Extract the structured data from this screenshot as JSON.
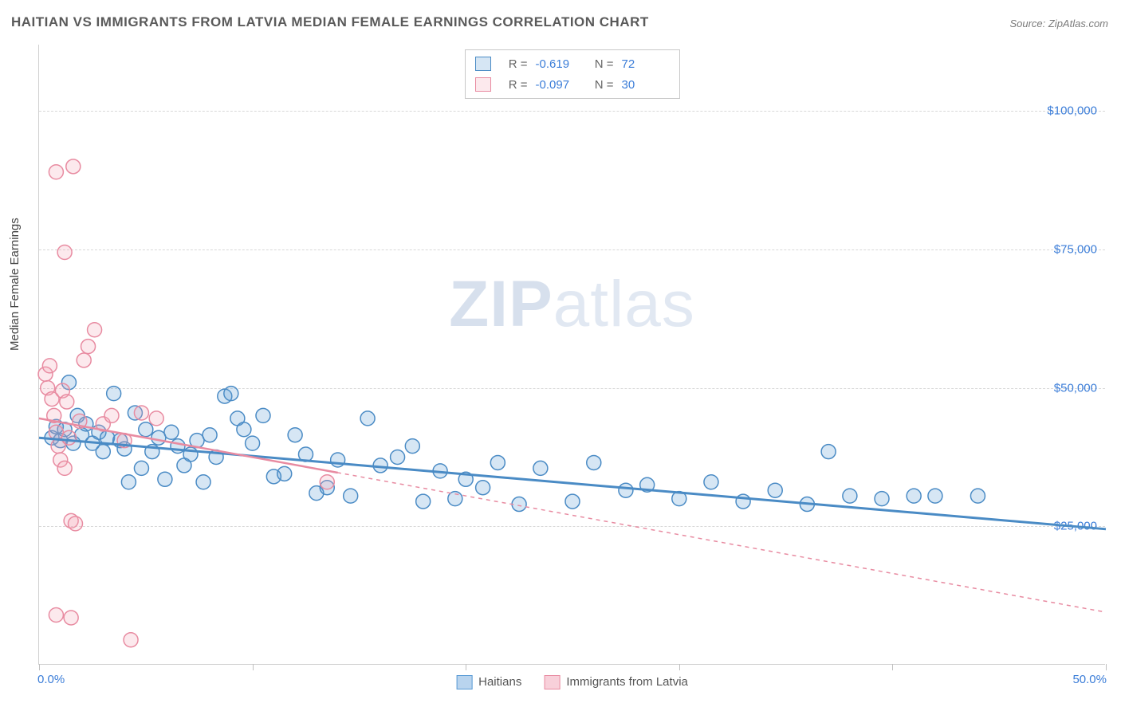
{
  "title": "HAITIAN VS IMMIGRANTS FROM LATVIA MEDIAN FEMALE EARNINGS CORRELATION CHART",
  "source": "Source: ZipAtlas.com",
  "ylabel": "Median Female Earnings",
  "watermark_a": "ZIP",
  "watermark_b": "atlas",
  "chart": {
    "type": "scatter",
    "xlim": [
      0,
      50
    ],
    "ylim": [
      0,
      112000
    ],
    "yticks": [
      25000,
      50000,
      75000,
      100000
    ],
    "ytick_labels": [
      "$25,000",
      "$50,000",
      "$75,000",
      "$100,000"
    ],
    "xticks": [
      0,
      10,
      20,
      30,
      40,
      50
    ],
    "x_start_label": "0.0%",
    "x_end_label": "50.0%",
    "background_color": "#ffffff",
    "grid_color": "#d8d8d8",
    "marker_radius": 9,
    "marker_fill_opacity": 0.25,
    "series": [
      {
        "name": "Haitians",
        "color": "#5a9bd5",
        "stroke": "#4a8bc5",
        "R": "-0.619",
        "N": "72",
        "regression": {
          "x1": 0,
          "y1": 41000,
          "x2": 50,
          "y2": 24500,
          "dash": "none",
          "width": 3
        },
        "points": [
          [
            0.6,
            41000
          ],
          [
            0.8,
            43000
          ],
          [
            1.0,
            40500
          ],
          [
            1.2,
            42500
          ],
          [
            1.4,
            51000
          ],
          [
            1.6,
            40000
          ],
          [
            1.8,
            45000
          ],
          [
            2.0,
            41500
          ],
          [
            2.2,
            43500
          ],
          [
            2.5,
            40000
          ],
          [
            2.8,
            42000
          ],
          [
            3.0,
            38500
          ],
          [
            3.2,
            41000
          ],
          [
            3.5,
            49000
          ],
          [
            3.8,
            40500
          ],
          [
            4.0,
            39000
          ],
          [
            4.2,
            33000
          ],
          [
            4.5,
            45500
          ],
          [
            4.8,
            35500
          ],
          [
            5.0,
            42500
          ],
          [
            5.3,
            38500
          ],
          [
            5.6,
            41000
          ],
          [
            5.9,
            33500
          ],
          [
            6.2,
            42000
          ],
          [
            6.5,
            39500
          ],
          [
            6.8,
            36000
          ],
          [
            7.1,
            38000
          ],
          [
            7.4,
            40500
          ],
          [
            7.7,
            33000
          ],
          [
            8.0,
            41500
          ],
          [
            8.3,
            37500
          ],
          [
            8.7,
            48500
          ],
          [
            9.0,
            49000
          ],
          [
            9.3,
            44500
          ],
          [
            9.6,
            42500
          ],
          [
            10.0,
            40000
          ],
          [
            10.5,
            45000
          ],
          [
            11.0,
            34000
          ],
          [
            11.5,
            34500
          ],
          [
            12.0,
            41500
          ],
          [
            12.5,
            38000
          ],
          [
            13.0,
            31000
          ],
          [
            13.5,
            32000
          ],
          [
            14.0,
            37000
          ],
          [
            14.6,
            30500
          ],
          [
            15.4,
            44500
          ],
          [
            16.0,
            36000
          ],
          [
            16.8,
            37500
          ],
          [
            17.5,
            39500
          ],
          [
            18.0,
            29500
          ],
          [
            18.8,
            35000
          ],
          [
            19.5,
            30000
          ],
          [
            20.0,
            33500
          ],
          [
            20.8,
            32000
          ],
          [
            21.5,
            36500
          ],
          [
            22.5,
            29000
          ],
          [
            23.5,
            35500
          ],
          [
            25.0,
            29500
          ],
          [
            26.0,
            36500
          ],
          [
            27.5,
            31500
          ],
          [
            28.5,
            32500
          ],
          [
            30.0,
            30000
          ],
          [
            31.5,
            33000
          ],
          [
            33.0,
            29500
          ],
          [
            34.5,
            31500
          ],
          [
            36.0,
            29000
          ],
          [
            37.0,
            38500
          ],
          [
            38.0,
            30500
          ],
          [
            39.5,
            30000
          ],
          [
            41.0,
            30500
          ],
          [
            42.0,
            30500
          ],
          [
            44.0,
            30500
          ]
        ]
      },
      {
        "name": "Immigrants from Latvia",
        "color": "#f4a6b8",
        "stroke": "#e88ba1",
        "R": "-0.097",
        "N": "30",
        "regression": {
          "x1": 0,
          "y1": 44500,
          "x2": 50,
          "y2": 9500,
          "dash": "5,5",
          "width": 1.5
        },
        "points": [
          [
            0.3,
            52500
          ],
          [
            0.4,
            50000
          ],
          [
            0.5,
            54000
          ],
          [
            0.6,
            48000
          ],
          [
            0.7,
            45000
          ],
          [
            0.8,
            42000
          ],
          [
            0.9,
            39500
          ],
          [
            1.0,
            37000
          ],
          [
            1.1,
            49500
          ],
          [
            1.2,
            35500
          ],
          [
            1.3,
            47500
          ],
          [
            1.4,
            41000
          ],
          [
            1.5,
            26000
          ],
          [
            1.7,
            25500
          ],
          [
            1.9,
            44000
          ],
          [
            2.1,
            55000
          ],
          [
            2.3,
            57500
          ],
          [
            2.6,
            60500
          ],
          [
            1.2,
            74500
          ],
          [
            1.6,
            90000
          ],
          [
            0.8,
            89000
          ],
          [
            3.0,
            43500
          ],
          [
            3.4,
            45000
          ],
          [
            4.0,
            40500
          ],
          [
            4.8,
            45500
          ],
          [
            5.5,
            44500
          ],
          [
            0.8,
            9000
          ],
          [
            1.5,
            8500
          ],
          [
            4.3,
            4500
          ],
          [
            13.5,
            33000
          ]
        ]
      }
    ]
  },
  "legend_bottom": [
    {
      "label": "Haitians",
      "fill": "#b9d4ee",
      "border": "#5a9bd5"
    },
    {
      "label": "Immigrants from Latvia",
      "fill": "#f8d0da",
      "border": "#e88ba1"
    }
  ]
}
